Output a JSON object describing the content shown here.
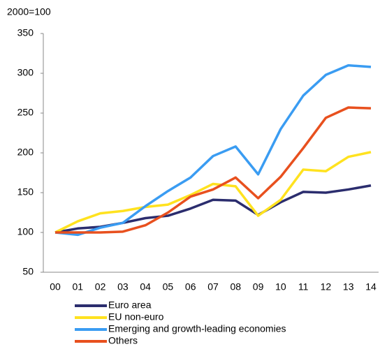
{
  "chart_data": {
    "type": "line",
    "y_label": "2000=100",
    "categories": [
      "00",
      "01",
      "02",
      "03",
      "04",
      "05",
      "06",
      "07",
      "08",
      "09",
      "10",
      "11",
      "12",
      "13",
      "14"
    ],
    "series": [
      {
        "name": "Euro area",
        "color": "#2b2d6e",
        "values": [
          100,
          105,
          107,
          112,
          118,
          121,
          130,
          141,
          140,
          122,
          138,
          151,
          150,
          154,
          159
        ]
      },
      {
        "name": "EU non-euro",
        "color": "#ffe21f",
        "values": [
          100,
          114,
          124,
          127,
          132,
          135,
          147,
          161,
          158,
          121,
          141,
          179,
          177,
          195,
          201
        ]
      },
      {
        "name": "Emerging and growth-leading economies",
        "color": "#3a9cf2",
        "values": [
          100,
          97,
          106,
          112,
          133,
          152,
          169,
          196,
          208,
          173,
          230,
          272,
          298,
          310,
          308
        ]
      },
      {
        "name": "Others",
        "color": "#e8501e",
        "values": [
          100,
          100,
          100,
          101,
          109,
          125,
          145,
          154,
          169,
          143,
          170,
          206,
          244,
          257,
          256
        ]
      }
    ],
    "ylim": [
      50,
      350
    ],
    "yticks": [
      50,
      100,
      150,
      200,
      250,
      300,
      350
    ],
    "grid": false,
    "legend": "bottom"
  }
}
